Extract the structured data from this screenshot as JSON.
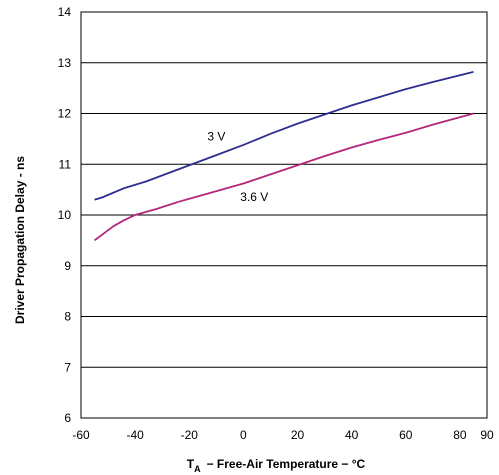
{
  "chart_data": {
    "type": "line",
    "title": "",
    "xlabel_symbol": "T",
    "xlabel_subscript": "A",
    "xlabel_rest": "− Free-Air Temperature − °C",
    "ylabel": "Driver Propagation Delay - ns",
    "xlim": [
      -60,
      90
    ],
    "ylim": [
      6,
      14
    ],
    "x_ticks": [
      -60,
      -40,
      -20,
      0,
      20,
      40,
      60,
      80,
      90
    ],
    "x_tick_labels": [
      "-60",
      "-40",
      "-20",
      "0",
      "20",
      "40",
      "60",
      "80",
      "90"
    ],
    "y_ticks": [
      6,
      7,
      8,
      9,
      10,
      11,
      12,
      13,
      14
    ],
    "y_tick_labels": [
      "6",
      "7",
      "8",
      "9",
      "10",
      "11",
      "12",
      "13",
      "14"
    ],
    "grid": "horizontal",
    "series": [
      {
        "name": "3 V",
        "color": "#2e2e8f",
        "x": [
          -55,
          -52,
          -44,
          -36,
          -28,
          -20,
          -10,
          0,
          10,
          20,
          30,
          40,
          50,
          60,
          70,
          85
        ],
        "y": [
          10.3,
          10.35,
          10.53,
          10.66,
          10.82,
          10.98,
          11.18,
          11.38,
          11.6,
          11.8,
          11.98,
          12.16,
          12.32,
          12.48,
          12.62,
          12.82
        ]
      },
      {
        "name": "3.6 V",
        "color": "#b3267d",
        "x": [
          -55,
          -52,
          -48,
          -44,
          -40,
          -32,
          -24,
          -16,
          -8,
          0,
          10,
          20,
          30,
          40,
          50,
          60,
          70,
          85
        ],
        "y": [
          9.5,
          9.62,
          9.78,
          9.9,
          10.0,
          10.12,
          10.26,
          10.38,
          10.5,
          10.62,
          10.8,
          10.98,
          11.16,
          11.33,
          11.48,
          11.62,
          11.78,
          12.0
        ]
      }
    ],
    "annotations": [
      {
        "text": "3 V",
        "x": -10,
        "y": 11.55
      },
      {
        "text": "3.6 V",
        "x": 4,
        "y": 10.35
      }
    ]
  }
}
